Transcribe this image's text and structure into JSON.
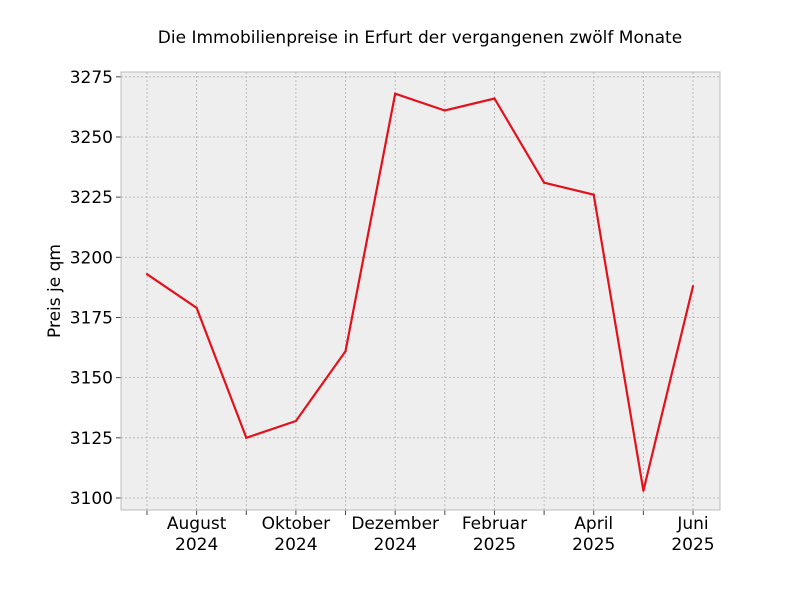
{
  "chart_data": {
    "type": "line",
    "title": "Die Immobilienpreise in Erfurt der vergangenen zwölf Monate",
    "xlabel": "",
    "ylabel": "Preis je qm",
    "ylim": [
      3095,
      3277
    ],
    "grid": true,
    "y_ticks": [
      3100,
      3125,
      3150,
      3175,
      3200,
      3225,
      3250,
      3275
    ],
    "x_ticks": [
      {
        "index": 1,
        "line1": "August",
        "line2": "2024"
      },
      {
        "index": 3,
        "line1": "Oktober",
        "line2": "2024"
      },
      {
        "index": 5,
        "line1": "Dezember",
        "line2": "2024"
      },
      {
        "index": 7,
        "line1": "Februar",
        "line2": "2025"
      },
      {
        "index": 9,
        "line1": "April",
        "line2": "2025"
      },
      {
        "index": 11,
        "line1": "Juni",
        "line2": "2025"
      }
    ],
    "x": [
      "2024-07",
      "2024-08",
      "2024-09",
      "2024-10",
      "2024-11",
      "2024-12",
      "2025-01",
      "2025-02",
      "2025-03",
      "2025-04",
      "2025-05",
      "2025-06"
    ],
    "series": [
      {
        "values": [
          3193,
          3179,
          3125,
          3132,
          3161,
          3268,
          3261,
          3266,
          3231,
          3226,
          3103,
          3188
        ],
        "color": "#e3111b"
      }
    ],
    "colors": {
      "plot_bg": "#eeeeee",
      "grid": "#b0b0b0",
      "frame": "#bcbcbc"
    }
  }
}
